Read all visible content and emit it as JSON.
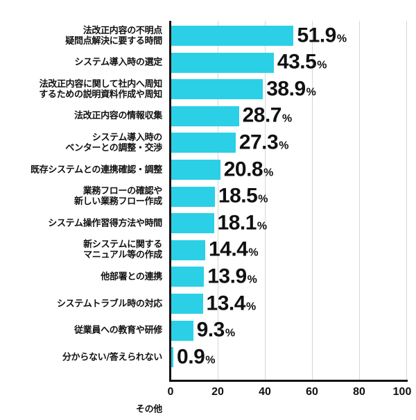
{
  "chart_data": {
    "type": "bar",
    "orientation": "horizontal",
    "title": "",
    "xlabel": "",
    "ylabel": "",
    "xlim": [
      0,
      100
    ],
    "x_ticks": [
      "0",
      "20",
      "40",
      "60",
      "80",
      "100"
    ],
    "grid": true,
    "bar_color": "#2bd0e6",
    "value_suffix": "%",
    "categories": [
      "法改正内容の不明点\n疑問点解決に要する時間",
      "システム導入時の選定",
      "法改正内容に関して社内へ周知\nするための説明資料作成や周知",
      "法改正内容の情報収集",
      "システム導入時の\nベンターとの調整・交渉",
      "既存システムとの連携確認・調整",
      "業務フローの確認や\n新しい業務フロー作成",
      "システム操作習得方法や時間",
      "新システムに関する\nマニュアル等の作成",
      "他部署との連携",
      "システムトラブル時の対応",
      "従業員への教育や研修",
      "分からない/答えられない"
    ],
    "values": [
      51.9,
      43.5,
      38.9,
      28.7,
      27.3,
      20.8,
      18.5,
      18.1,
      14.4,
      13.9,
      13.4,
      9.3,
      0.9
    ],
    "value_labels": [
      "51.9",
      "43.5",
      "38.9",
      "28.7",
      "27.3",
      "20.8",
      "18.5",
      "18.1",
      "14.4",
      "13.9",
      "13.4",
      "9.3",
      "0.9"
    ],
    "extra_label_below_axis": "その他"
  }
}
